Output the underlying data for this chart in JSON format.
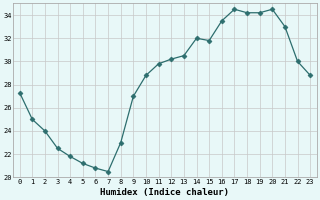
{
  "x": [
    0,
    1,
    2,
    3,
    4,
    5,
    6,
    7,
    8,
    9,
    10,
    11,
    12,
    13,
    14,
    15,
    16,
    17,
    18,
    19,
    20,
    21,
    22,
    23
  ],
  "y": [
    27.3,
    25.0,
    24.0,
    22.5,
    21.8,
    21.2,
    20.8,
    20.5,
    23.0,
    27.0,
    28.8,
    29.8,
    30.2,
    30.5,
    32.0,
    31.8,
    33.5,
    34.5,
    34.2,
    34.2,
    34.5,
    33.0,
    30.0,
    28.8
  ],
  "line_color": "#2d6e6e",
  "marker": "D",
  "marker_size": 2.5,
  "plot_bg_color": "#e8f8f8",
  "fig_bg_color": "#e8f8f8",
  "grid_color": "#c8c8c8",
  "xlabel": "Humidex (Indice chaleur)",
  "xlim": [
    -0.5,
    23.5
  ],
  "ylim": [
    20,
    35
  ],
  "yticks": [
    20,
    22,
    24,
    26,
    28,
    30,
    32,
    34
  ],
  "xticks": [
    0,
    1,
    2,
    3,
    4,
    5,
    6,
    7,
    8,
    9,
    10,
    11,
    12,
    13,
    14,
    15,
    16,
    17,
    18,
    19,
    20,
    21,
    22,
    23
  ],
  "xlabel_fontsize": 6.5,
  "tick_fontsize": 5.0
}
